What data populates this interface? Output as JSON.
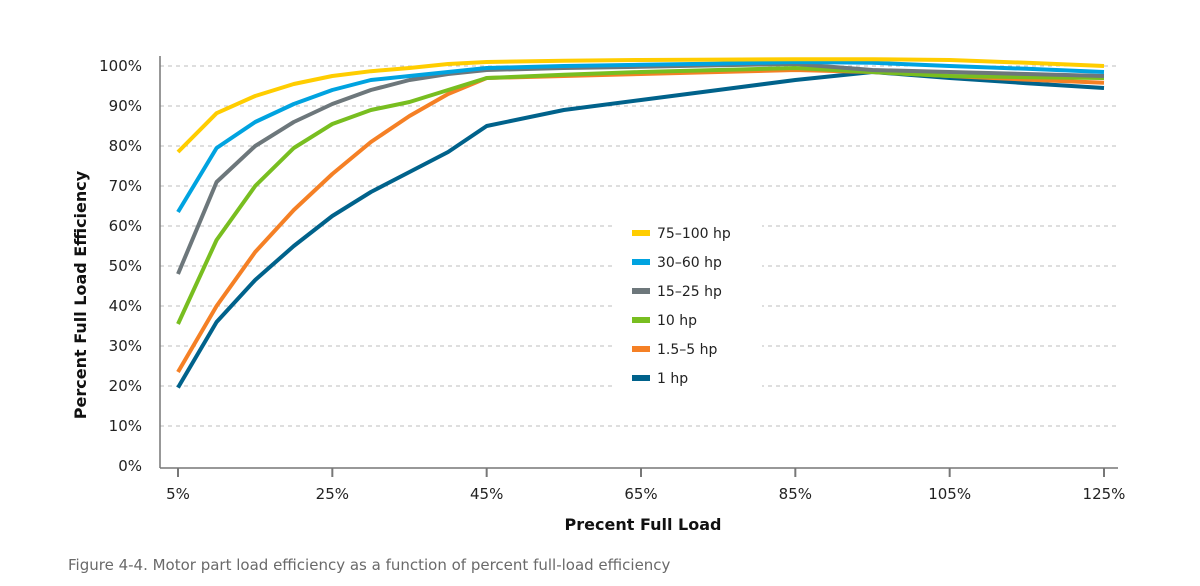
{
  "chart_data": {
    "type": "line",
    "xlabel": "Precent Full Load",
    "ylabel": "Percent Full Load Efficiency",
    "caption": "Figure 4-4. Motor part load efficiency as a function of percent full-load efficiency",
    "xlim": [
      5,
      125
    ],
    "ylim": [
      0,
      100
    ],
    "x_ticks": [
      "5%",
      "25%",
      "45%",
      "65%",
      "85%",
      "105%",
      "125%"
    ],
    "x_tick_values": [
      5,
      25,
      45,
      65,
      85,
      105,
      125
    ],
    "y_ticks": [
      "0%",
      "10%",
      "20%",
      "30%",
      "40%",
      "50%",
      "60%",
      "70%",
      "80%",
      "90%",
      "100%"
    ],
    "y_tick_values": [
      0,
      10,
      20,
      30,
      40,
      50,
      60,
      70,
      80,
      90,
      100
    ],
    "grid": "horizontal dashed",
    "legend_position": "center",
    "x": [
      5,
      10,
      15,
      20,
      25,
      30,
      35,
      40,
      45,
      55,
      65,
      75,
      85,
      95,
      105,
      115,
      125
    ],
    "series": [
      {
        "name": "75–100 hp",
        "color": "#FFCD00",
        "values": [
          78.5,
          88.2,
          92.5,
          95.5,
          97.5,
          98.7,
          99.5,
          100.5,
          101,
          101.3,
          101.5,
          101.6,
          101.7,
          101.7,
          101.5,
          100.8,
          100
        ]
      },
      {
        "name": "30–60 hp",
        "color": "#00A3E0",
        "values": [
          63.5,
          79.5,
          86,
          90.5,
          94,
          96.5,
          97.5,
          98.5,
          99.5,
          100,
          100.3,
          100.6,
          101,
          100.8,
          100,
          99.3,
          98.5
        ]
      },
      {
        "name": "15–25 hp",
        "color": "#6D777B",
        "values": [
          48,
          71,
          80,
          86,
          90.5,
          94,
          96.5,
          98,
          99,
          99.5,
          99.8,
          100.2,
          100.5,
          99,
          98.5,
          98,
          97.5
        ]
      },
      {
        "name": "10 hp",
        "color": "#78BE20",
        "values": [
          35.5,
          56.5,
          70,
          79.5,
          85.5,
          89,
          91,
          94,
          97,
          97.8,
          98.5,
          99,
          99.5,
          98.5,
          97.5,
          97.2,
          97
        ]
      },
      {
        "name": "1.5–5 hp",
        "color": "#F58025",
        "values": [
          23.5,
          40,
          53.5,
          64,
          73,
          81,
          87.5,
          93,
          97,
          97.5,
          98,
          98.5,
          99,
          98.5,
          97.5,
          96.6,
          95.8
        ]
      },
      {
        "name": "1 hp",
        "color": "#00628B",
        "values": [
          19.6,
          36,
          46.5,
          55,
          62.5,
          68.5,
          73.5,
          78.5,
          85,
          89,
          91.5,
          94,
          96.5,
          98.5,
          97,
          95.7,
          94.5
        ]
      }
    ]
  }
}
